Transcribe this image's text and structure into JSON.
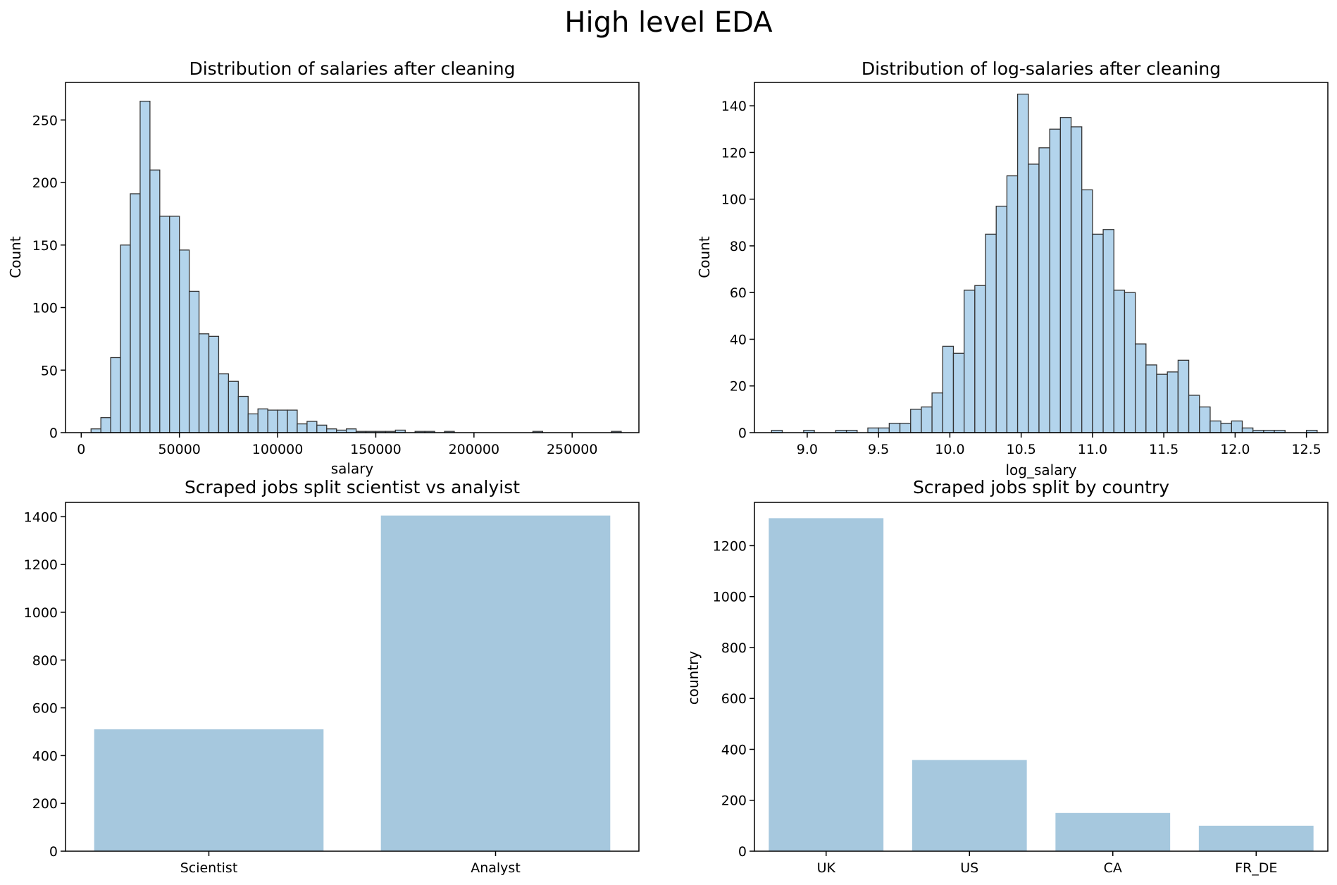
{
  "figure_title": "High level EDA",
  "colors": {
    "hist_fill": "#b3d4ec",
    "hist_edge": "#333333",
    "bar_fill": "#a6c8de"
  },
  "chart_data": [
    {
      "type": "bar",
      "title": "Distribution of salaries after cleaning",
      "xlabel": "salary",
      "ylabel": "Count",
      "xlim": [
        -8000,
        284000
      ],
      "ylim": [
        0,
        280
      ],
      "xticks": [
        0,
        50000,
        100000,
        150000,
        200000,
        250000
      ],
      "xtick_labels": [
        "0",
        "50000",
        "100000",
        "150000",
        "200000",
        "250000"
      ],
      "yticks": [
        0,
        50,
        100,
        150,
        200,
        250
      ],
      "ytick_labels": [
        "0",
        "50",
        "100",
        "150",
        "200",
        "250"
      ],
      "bin_start": 5000,
      "bin_width": 5000,
      "values": [
        3,
        12,
        60,
        150,
        191,
        265,
        210,
        173,
        173,
        146,
        113,
        79,
        77,
        47,
        41,
        29,
        15,
        19,
        18,
        18,
        18,
        7,
        9,
        6,
        3,
        2,
        3,
        1,
        1,
        1,
        1,
        2,
        0,
        1,
        1,
        0,
        1,
        0,
        0,
        0,
        0,
        0,
        0,
        0,
        0,
        1,
        0,
        0,
        0,
        0,
        0,
        0,
        0,
        1
      ]
    },
    {
      "type": "bar",
      "title": "Distribution of log-salaries after cleaning",
      "xlabel": "log_salary",
      "ylabel": "Count",
      "xlim": [
        8.63,
        12.65
      ],
      "ylim": [
        0,
        150
      ],
      "xticks": [
        9.0,
        9.5,
        10.0,
        10.5,
        11.0,
        11.5,
        12.0,
        12.5
      ],
      "xtick_labels": [
        "9.0",
        "9.5",
        "10.0",
        "10.5",
        "11.0",
        "11.5",
        "12.0",
        "12.5"
      ],
      "yticks": [
        0,
        20,
        40,
        60,
        80,
        100,
        120,
        140
      ],
      "ytick_labels": [
        "0",
        "20",
        "40",
        "60",
        "80",
        "100",
        "120",
        "140"
      ],
      "bin_start": 8.75,
      "bin_width": 0.075,
      "values": [
        1,
        0,
        0,
        1,
        0,
        0,
        1,
        1,
        0,
        2,
        2,
        4,
        4,
        10,
        11,
        17,
        37,
        34,
        61,
        63,
        85,
        97,
        110,
        145,
        115,
        122,
        130,
        135,
        131,
        104,
        85,
        87,
        61,
        60,
        38,
        29,
        25,
        26,
        31,
        16,
        11,
        5,
        4,
        5,
        2,
        1,
        1,
        1,
        0,
        0,
        1
      ]
    },
    {
      "type": "bar",
      "title": "Scraped jobs split scientist vs analyist",
      "xlabel": "",
      "ylabel": "",
      "ylim": [
        0,
        1460
      ],
      "categories": [
        "Scientist",
        "Analyst"
      ],
      "values": [
        510,
        1405
      ],
      "yticks": [
        0,
        200,
        400,
        600,
        800,
        1000,
        1200,
        1400
      ],
      "ytick_labels": [
        "0",
        "200",
        "400",
        "600",
        "800",
        "1000",
        "1200",
        "1400"
      ]
    },
    {
      "type": "bar",
      "title": "Scraped jobs split by country",
      "xlabel": "",
      "ylabel": "country",
      "ylim": [
        0,
        1370
      ],
      "categories": [
        "UK",
        "US",
        "CA",
        "FR_DE"
      ],
      "values": [
        1308,
        358,
        150,
        100
      ],
      "yticks": [
        0,
        200,
        400,
        600,
        800,
        1000,
        1200
      ],
      "ytick_labels": [
        "0",
        "200",
        "400",
        "600",
        "800",
        "1000",
        "1200"
      ]
    }
  ]
}
